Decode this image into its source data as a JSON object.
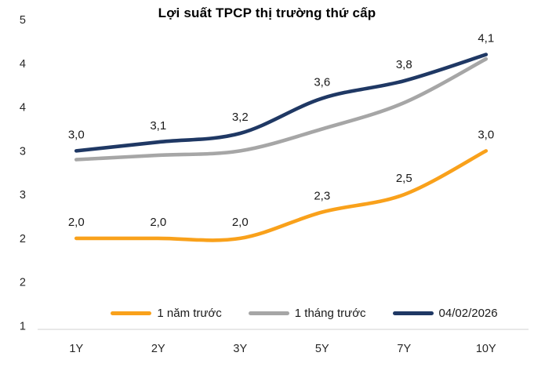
{
  "chart_data": {
    "type": "line",
    "title": "Lợi suất TPCP thị trường thứ cấp",
    "categories": [
      "1Y",
      "2Y",
      "3Y",
      "5Y",
      "7Y",
      "10Y"
    ],
    "series": [
      {
        "name": "1 năm trước",
        "color": "#F9A11B",
        "values": [
          2.0,
          2.0,
          2.0,
          2.3,
          2.5,
          3.0
        ],
        "point_labels": [
          "2,0",
          "2,0",
          "2,0",
          "2,3",
          "2,5",
          "3,0"
        ]
      },
      {
        "name": "1 tháng trước",
        "color": "#A6A6A6",
        "values": [
          2.9,
          2.95,
          3.0,
          3.25,
          3.55,
          4.05
        ],
        "point_labels": [
          "",
          "",
          "",
          "",
          "",
          ""
        ]
      },
      {
        "name": "04/02/2026",
        "color": "#1F3864",
        "values": [
          3.0,
          3.1,
          3.2,
          3.6,
          3.8,
          4.1
        ],
        "point_labels": [
          "3,0",
          "3,1",
          "3,2",
          "3,6",
          "3,8",
          "4,1"
        ]
      }
    ],
    "ylim": [
      1,
      4.5
    ],
    "y_tick_step": 0.5,
    "y_tick_labels_top_to_bottom": [
      "5",
      "4",
      "4",
      "3",
      "3",
      "2",
      "2",
      "1"
    ],
    "grid": false,
    "smoothed": true,
    "legend_position": "bottom",
    "axis_line_color": "#D9D9D9",
    "decimal_separator": ","
  }
}
